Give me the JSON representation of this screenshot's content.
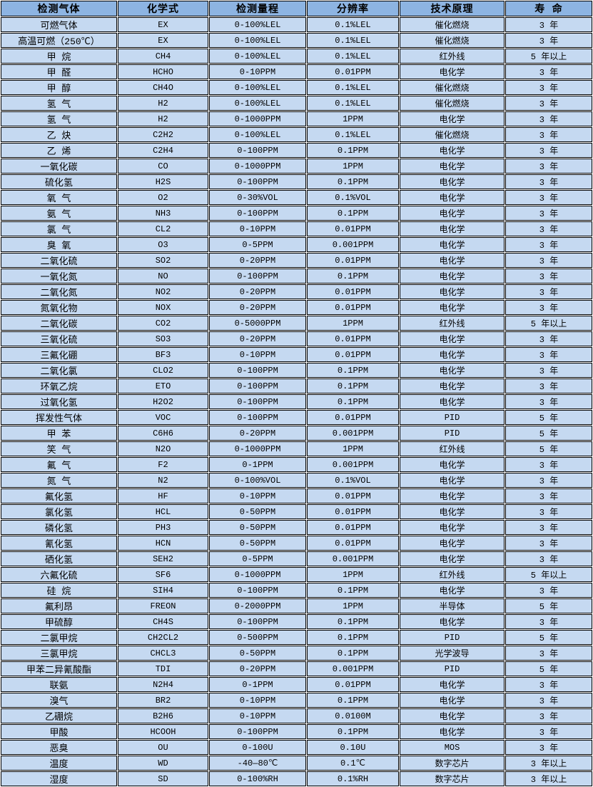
{
  "colors": {
    "header_bg": "#8DB4E2",
    "cell_bg": "#C5D9F1",
    "border": "#000000",
    "text": "#000000"
  },
  "table": {
    "headers": [
      "检测气体",
      "化学式",
      "检测量程",
      "分辨率",
      "技术原理",
      "寿 命"
    ],
    "rows": [
      [
        "可燃气体",
        "EX",
        "0-100%LEL",
        "0.1%LEL",
        "催化燃烧",
        "3 年"
      ],
      [
        "高温可燃（250℃）",
        "EX",
        "0-100%LEL",
        "0.1%LEL",
        "催化燃烧",
        "3 年"
      ],
      [
        "甲 烷",
        "CH4",
        "0-100%LEL",
        "0.1%LEL",
        "红外线",
        "5 年以上"
      ],
      [
        "甲 醛",
        "HCHO",
        "0-10PPM",
        "0.01PPM",
        "电化学",
        "3 年"
      ],
      [
        "甲 醇",
        "CH4O",
        "0-100%LEL",
        "0.1%LEL",
        "催化燃烧",
        "3 年"
      ],
      [
        "氢 气",
        "H2",
        "0-100%LEL",
        "0.1%LEL",
        "催化燃烧",
        "3 年"
      ],
      [
        "氢 气",
        "H2",
        "0-1000PPM",
        "1PPM",
        "电化学",
        "3 年"
      ],
      [
        "乙 炔",
        "C2H2",
        "0-100%LEL",
        "0.1%LEL",
        "催化燃烧",
        "3 年"
      ],
      [
        "乙 烯",
        "C2H4",
        "0-100PPM",
        "0.1PPM",
        "电化学",
        "3 年"
      ],
      [
        "一氧化碳",
        "CO",
        "0-1000PPM",
        "1PPM",
        "电化学",
        "3 年"
      ],
      [
        "硫化氢",
        "H2S",
        "0-100PPM",
        "0.1PPM",
        "电化学",
        "3 年"
      ],
      [
        "氧 气",
        "O2",
        "0-30%VOL",
        "0.1%VOL",
        "电化学",
        "3 年"
      ],
      [
        "氨 气",
        "NH3",
        "0-100PPM",
        "0.1PPM",
        "电化学",
        "3 年"
      ],
      [
        "氯 气",
        "CL2",
        "0-10PPM",
        "0.01PPM",
        "电化学",
        "3 年"
      ],
      [
        "臭 氧",
        "O3",
        "0-5PPM",
        "0.001PPM",
        "电化学",
        "3 年"
      ],
      [
        "二氧化硫",
        "SO2",
        "0-20PPM",
        "0.01PPM",
        "电化学",
        "3 年"
      ],
      [
        "一氧化氮",
        "NO",
        "0-100PPM",
        "0.1PPM",
        "电化学",
        "3 年"
      ],
      [
        "二氧化氮",
        "NO2",
        "0-20PPM",
        "0.01PPM",
        "电化学",
        "3 年"
      ],
      [
        "氮氧化物",
        "NOX",
        "0-20PPM",
        "0.01PPM",
        "电化学",
        "3 年"
      ],
      [
        "二氧化碳",
        "CO2",
        "0-5000PPM",
        "1PPM",
        "红外线",
        "5 年以上"
      ],
      [
        "三氧化硫",
        "SO3",
        "0-20PPM",
        "0.01PPM",
        "电化学",
        "3 年"
      ],
      [
        "三氟化硼",
        "BF3",
        "0-10PPM",
        "0.01PPM",
        "电化学",
        "3 年"
      ],
      [
        "二氧化氯",
        "CLO2",
        "0-100PPM",
        "0.1PPM",
        "电化学",
        "3 年"
      ],
      [
        "环氧乙烷",
        "ETO",
        "0-100PPM",
        "0.1PPM",
        "电化学",
        "3 年"
      ],
      [
        "过氧化氢",
        "H2O2",
        "0-100PPM",
        "0.1PPM",
        "电化学",
        "3 年"
      ],
      [
        "挥发性气体",
        "VOC",
        "0-100PPM",
        "0.01PPM",
        "PID",
        "5 年"
      ],
      [
        "甲 苯",
        "C6H6",
        "0-20PPM",
        "0.001PPM",
        "PID",
        "5 年"
      ],
      [
        "笑 气",
        "N2O",
        "0-1000PPM",
        "1PPM",
        "红外线",
        "5 年"
      ],
      [
        "氟 气",
        "F2",
        "0-1PPM",
        "0.001PPM",
        "电化学",
        "3 年"
      ],
      [
        "氮 气",
        "N2",
        "0-100%VOL",
        "0.1%VOL",
        "电化学",
        "3 年"
      ],
      [
        "氟化氢",
        "HF",
        "0-10PPM",
        "0.01PPM",
        "电化学",
        "3 年"
      ],
      [
        "氯化氢",
        "HCL",
        "0-50PPM",
        "0.01PPM",
        "电化学",
        "3 年"
      ],
      [
        "磷化氢",
        "PH3",
        "0-50PPM",
        "0.01PPM",
        "电化学",
        "3 年"
      ],
      [
        "氰化氢",
        "HCN",
        "0-50PPM",
        "0.01PPM",
        "电化学",
        "3 年"
      ],
      [
        "硒化氢",
        "SEH2",
        "0-5PPM",
        "0.001PPM",
        "电化学",
        "3 年"
      ],
      [
        "六氟化硫",
        "SF6",
        "0-1000PPM",
        "1PPM",
        "红外线",
        "5 年以上"
      ],
      [
        "硅 烷",
        "SIH4",
        "0-100PPM",
        "0.1PPM",
        "电化学",
        "3 年"
      ],
      [
        "氟利昂",
        "FREON",
        "0-2000PPM",
        "1PPM",
        "半导体",
        "5 年"
      ],
      [
        "甲硫醇",
        "CH4S",
        "0-100PPM",
        "0.1PPM",
        "电化学",
        "3 年"
      ],
      [
        "二氯甲烷",
        "CH2CL2",
        "0-500PPM",
        "0.1PPM",
        "PID",
        "5 年"
      ],
      [
        "三氯甲烷",
        "CHCL3",
        "0-50PPM",
        "0.1PPM",
        "光学波导",
        "3 年"
      ],
      [
        "甲苯二异氰酸酯",
        "TDI",
        "0-20PPM",
        "0.001PPM",
        "PID",
        "5 年"
      ],
      [
        "联氨",
        "N2H4",
        "0-1PPM",
        "0.01PPM",
        "电化学",
        "3 年"
      ],
      [
        "溴气",
        "BR2",
        "0-10PPM",
        "0.1PPM",
        "电化学",
        "3 年"
      ],
      [
        "乙硼烷",
        "B2H6",
        "0-10PPM",
        "0.0100M",
        "电化学",
        "3 年"
      ],
      [
        "甲酸",
        "HCOOH",
        "0-100PPM",
        "0.1PPM",
        "电化学",
        "3 年"
      ],
      [
        "恶臭",
        "OU",
        "0-100U",
        "0.10U",
        "MOS",
        "3 年"
      ],
      [
        "温度",
        "WD",
        "-40—80℃",
        "0.1℃",
        "数字芯片",
        "3 年以上"
      ],
      [
        "湿度",
        "SD",
        "0-100%RH",
        "0.1%RH",
        "数字芯片",
        "3 年以上"
      ]
    ]
  }
}
